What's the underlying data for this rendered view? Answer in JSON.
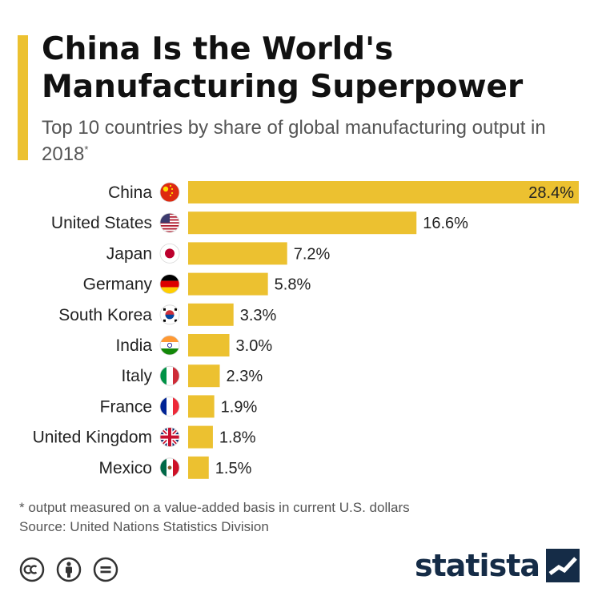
{
  "title_line1": "China Is the World's",
  "title_line2": "Manufacturing Superpower",
  "subtitle_main": "Top 10 countries by share of global manufacturing output in 2018",
  "subtitle_mark": "*",
  "footnote": "* output measured on a value-added basis in current U.S. dollars",
  "source": "Source: United Nations Statistics Division",
  "brand": "statista",
  "license_icons": [
    "cc-icon",
    "attribution-icon",
    "no-derivatives-icon"
  ],
  "colors": {
    "bar": "#ecc130",
    "accent": "#ecc130",
    "brand": "#152c47"
  },
  "chart_data": {
    "type": "bar",
    "orientation": "horizontal",
    "title": "China Is the World's Manufacturing Superpower",
    "subtitle": "Top 10 countries by share of global manufacturing output in 2018*",
    "xlabel": "",
    "ylabel": "",
    "xlim": [
      0,
      28.4
    ],
    "categories": [
      "China",
      "United States",
      "Japan",
      "Germany",
      "South Korea",
      "India",
      "Italy",
      "France",
      "United Kingdom",
      "Mexico"
    ],
    "values": [
      28.4,
      16.6,
      7.2,
      5.8,
      3.3,
      3.0,
      2.3,
      1.9,
      1.8,
      1.5
    ],
    "value_labels": [
      "28.4%",
      "16.6%",
      "7.2%",
      "5.8%",
      "3.3%",
      "3.0%",
      "2.3%",
      "1.9%",
      "1.8%",
      "1.5%"
    ],
    "flags": [
      "china-flag-icon",
      "us-flag-icon",
      "japan-flag-icon",
      "germany-flag-icon",
      "south-korea-flag-icon",
      "india-flag-icon",
      "italy-flag-icon",
      "france-flag-icon",
      "uk-flag-icon",
      "mexico-flag-icon"
    ]
  }
}
